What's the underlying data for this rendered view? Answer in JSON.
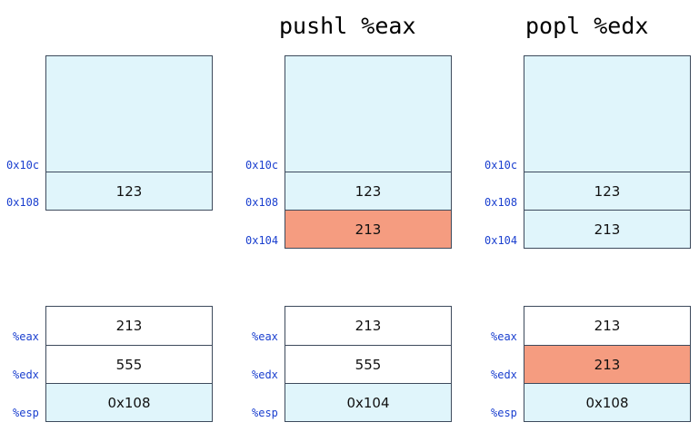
{
  "colors": {
    "stack_bg": "#e0f5fb",
    "reg_bg": "#ffffff",
    "highlight": "#f59c80",
    "addr_text": "#1a3fcf"
  },
  "panels": [
    {
      "title": "",
      "stack_cells": [
        {
          "value": "123",
          "addr": "0x108",
          "highlight": false
        }
      ],
      "top_addr": "0x10c",
      "registers": [
        {
          "name": "%eax",
          "value": "213",
          "highlight": false,
          "shade": false
        },
        {
          "name": "%edx",
          "value": "555",
          "highlight": false,
          "shade": false
        },
        {
          "name": "%esp",
          "value": "0x108",
          "highlight": false,
          "shade": true
        }
      ]
    },
    {
      "title": "pushl %eax",
      "stack_cells": [
        {
          "value": "123",
          "addr": "0x108",
          "highlight": false
        },
        {
          "value": "213",
          "addr": "0x104",
          "highlight": true
        }
      ],
      "top_addr": "0x10c",
      "registers": [
        {
          "name": "%eax",
          "value": "213",
          "highlight": false,
          "shade": false
        },
        {
          "name": "%edx",
          "value": "555",
          "highlight": false,
          "shade": false
        },
        {
          "name": "%esp",
          "value": "0x104",
          "highlight": false,
          "shade": true
        }
      ]
    },
    {
      "title": "popl %edx",
      "stack_cells": [
        {
          "value": "123",
          "addr": "0x108",
          "highlight": false
        },
        {
          "value": "213",
          "addr": "0x104",
          "highlight": false
        }
      ],
      "top_addr": "0x10c",
      "registers": [
        {
          "name": "%eax",
          "value": "213",
          "highlight": false,
          "shade": false
        },
        {
          "name": "%edx",
          "value": "213",
          "highlight": true,
          "shade": false
        },
        {
          "name": "%esp",
          "value": "0x108",
          "highlight": false,
          "shade": true
        }
      ]
    }
  ]
}
